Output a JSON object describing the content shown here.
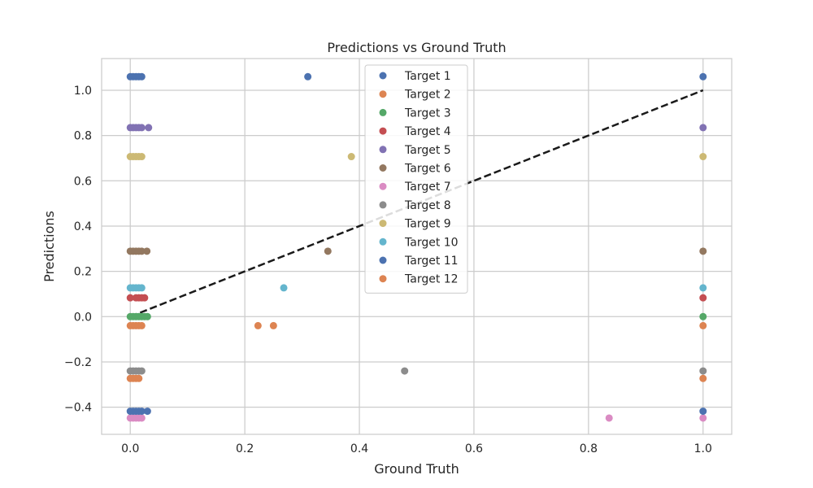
{
  "chart_data": {
    "type": "scatter",
    "title": "Predictions vs Ground Truth",
    "xlabel": "Ground Truth",
    "ylabel": "Predictions",
    "xlim": [
      -0.05,
      1.05
    ],
    "ylim": [
      -0.52,
      1.14
    ],
    "xticks": [
      0.0,
      0.2,
      0.4,
      0.6,
      0.8,
      1.0
    ],
    "xtick_labels": [
      "0.0",
      "0.2",
      "0.4",
      "0.6",
      "0.8",
      "1.0"
    ],
    "yticks": [
      -0.4,
      -0.2,
      0.0,
      0.2,
      0.4,
      0.6,
      0.8,
      1.0
    ],
    "ytick_labels": [
      "−0.4",
      "−0.2",
      "0.0",
      "0.2",
      "0.4",
      "0.6",
      "0.8",
      "1.0"
    ],
    "grid": true,
    "legend_position": "top-center",
    "reference_line": {
      "style": "dashed",
      "color": "#1a1a1a",
      "x": [
        0,
        1
      ],
      "y": [
        0,
        1
      ]
    },
    "series": [
      {
        "name": "Target 1",
        "color": "#4c72b0",
        "x": [
          0.0,
          0.005,
          0.01,
          0.015,
          0.02,
          0.31,
          1.0
        ],
        "y": [
          1.06,
          1.06,
          1.06,
          1.06,
          1.06,
          1.06,
          1.06
        ]
      },
      {
        "name": "Target 2",
        "color": "#dd8452",
        "x": [
          0.0,
          0.005,
          0.01,
          0.015,
          1.0
        ],
        "y": [
          -0.273,
          -0.273,
          -0.273,
          -0.273,
          -0.273
        ]
      },
      {
        "name": "Target 3",
        "color": "#55a868",
        "x": [
          0.0,
          0.005,
          0.01,
          0.015,
          0.02,
          0.025,
          0.03,
          1.0
        ],
        "y": [
          0.0,
          0.0,
          0.0,
          0.0,
          0.0,
          0.0,
          0.0,
          0.0
        ]
      },
      {
        "name": "Target 4",
        "color": "#c44e52",
        "x": [
          0.0,
          0.01,
          0.015,
          0.02,
          0.025,
          1.0
        ],
        "y": [
          0.083,
          0.083,
          0.083,
          0.083,
          0.083,
          0.083
        ]
      },
      {
        "name": "Target 5",
        "color": "#8172b3",
        "x": [
          0.0,
          0.005,
          0.01,
          0.015,
          0.02,
          0.032,
          1.0
        ],
        "y": [
          0.835,
          0.835,
          0.835,
          0.835,
          0.835,
          0.835,
          0.835
        ]
      },
      {
        "name": "Target 6",
        "color": "#937860",
        "x": [
          0.0,
          0.005,
          0.01,
          0.015,
          0.02,
          0.029,
          0.345,
          1.0
        ],
        "y": [
          0.289,
          0.289,
          0.289,
          0.289,
          0.289,
          0.289,
          0.289,
          0.289
        ]
      },
      {
        "name": "Target 7",
        "color": "#da8bc3",
        "x": [
          0.0,
          0.005,
          0.01,
          0.015,
          0.02,
          0.836,
          1.0
        ],
        "y": [
          -0.448,
          -0.448,
          -0.448,
          -0.448,
          -0.448,
          -0.448,
          -0.448
        ]
      },
      {
        "name": "Target 8",
        "color": "#8c8c8c",
        "x": [
          0.0,
          0.005,
          0.01,
          0.015,
          0.02,
          0.479,
          1.0
        ],
        "y": [
          -0.24,
          -0.24,
          -0.24,
          -0.24,
          -0.24,
          -0.24,
          -0.24
        ]
      },
      {
        "name": "Target 9",
        "color": "#ccb974",
        "x": [
          0.0,
          0.005,
          0.01,
          0.015,
          0.02,
          0.386,
          1.0
        ],
        "y": [
          0.707,
          0.707,
          0.707,
          0.707,
          0.707,
          0.707,
          0.707
        ]
      },
      {
        "name": "Target 10",
        "color": "#64b5cd",
        "x": [
          0.0,
          0.005,
          0.01,
          0.015,
          0.02,
          0.268,
          1.0
        ],
        "y": [
          0.127,
          0.127,
          0.127,
          0.127,
          0.127,
          0.127,
          0.127
        ]
      },
      {
        "name": "Target 11",
        "color": "#4c72b0",
        "x": [
          0.0,
          0.005,
          0.01,
          0.015,
          0.02,
          0.03,
          1.0
        ],
        "y": [
          -0.418,
          -0.418,
          -0.418,
          -0.418,
          -0.418,
          -0.418,
          -0.418
        ]
      },
      {
        "name": "Target 12",
        "color": "#dd8452",
        "x": [
          0.0,
          0.005,
          0.01,
          0.015,
          0.02,
          0.223,
          0.25,
          1.0
        ],
        "y": [
          -0.04,
          -0.04,
          -0.04,
          -0.04,
          -0.04,
          -0.04,
          -0.04,
          -0.04
        ]
      }
    ]
  }
}
